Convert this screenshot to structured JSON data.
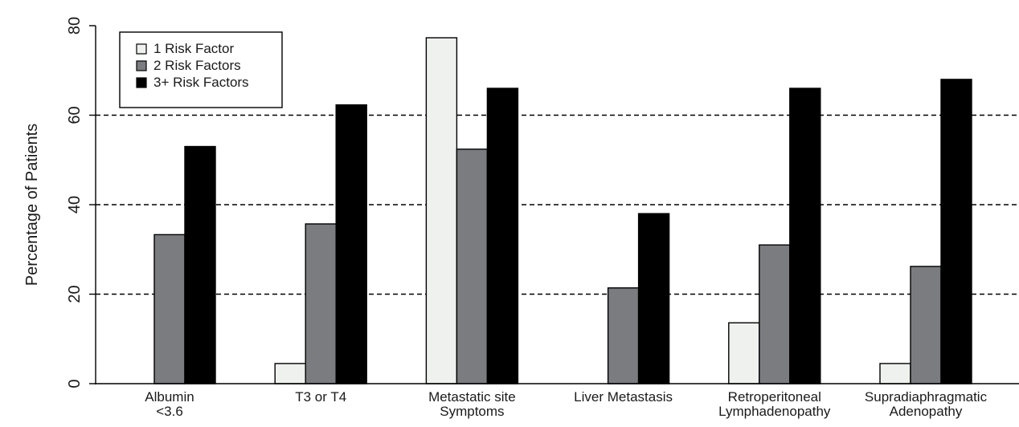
{
  "chart_data": {
    "type": "bar",
    "title": "",
    "xlabel": "",
    "ylabel": "Percentage of Patients",
    "ylim": [
      0,
      80
    ],
    "yticks": [
      0,
      20,
      40,
      60,
      80
    ],
    "grid": {
      "style": "dashed",
      "lines_at": [
        20,
        40,
        60
      ]
    },
    "legend_position": "top-left",
    "categories": [
      [
        "Albumin",
        "<3.6"
      ],
      [
        "T3 or T4"
      ],
      [
        "Metastatic site",
        "Symptoms"
      ],
      [
        "Liver Metastasis"
      ],
      [
        "Retroperitoneal",
        "Lymphadenopathy"
      ],
      [
        "Supradiaphragmatic",
        "Adenopathy"
      ]
    ],
    "series": [
      {
        "name": "1 Risk Factor",
        "color": "#eff1ef",
        "values": [
          0,
          4.5,
          77.3,
          0,
          13.6,
          4.5
        ]
      },
      {
        "name": "2 Risk Factors",
        "color": "#7b7c80",
        "values": [
          33.3,
          35.7,
          52.4,
          21.4,
          31.0,
          26.2
        ]
      },
      {
        "name": "3+ Risk Factors",
        "color": "#000000",
        "values": [
          53.0,
          62.3,
          66.0,
          38.0,
          66.0,
          68.0
        ]
      }
    ]
  }
}
